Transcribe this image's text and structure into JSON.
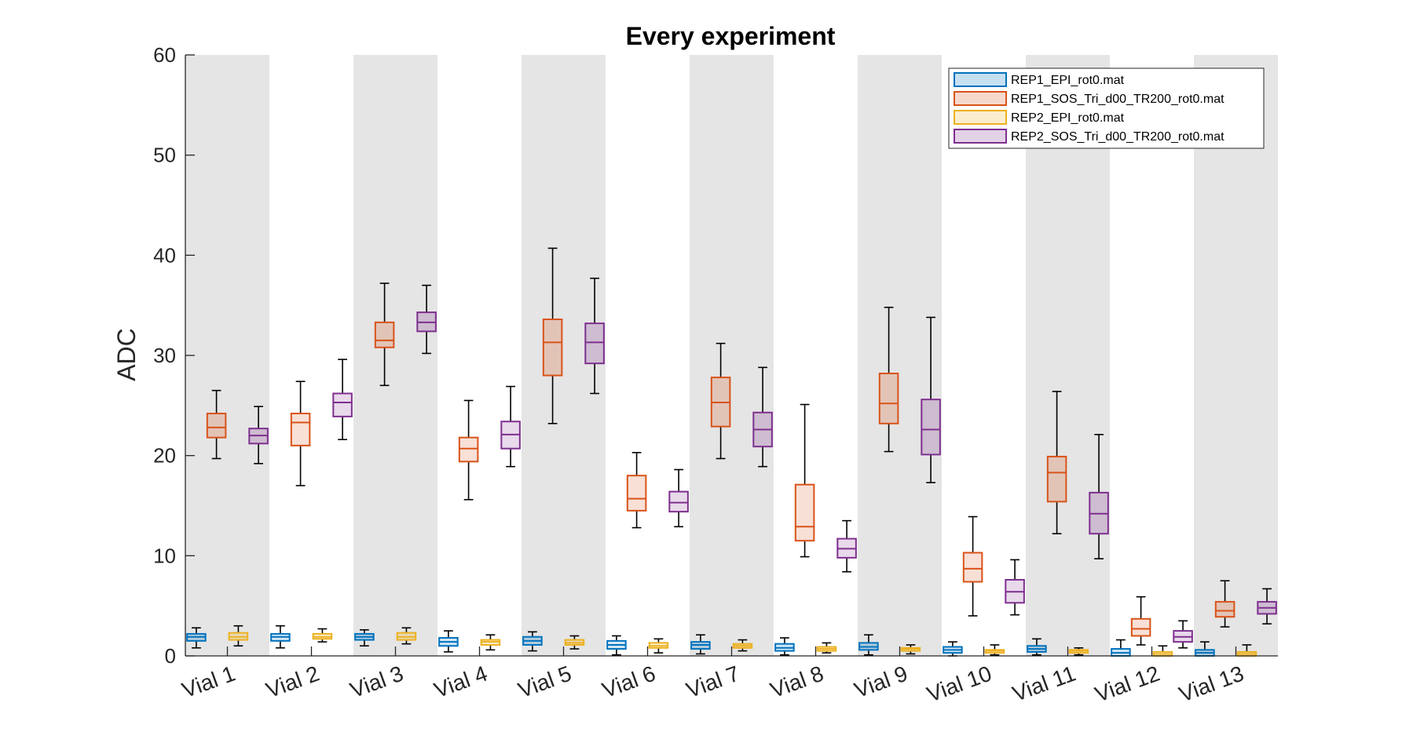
{
  "chart_data": {
    "type": "box",
    "title": "Every experiment",
    "xlabel": "",
    "ylabel": "ADC",
    "ylim": [
      0,
      60
    ],
    "yticks": [
      0,
      10,
      20,
      30,
      40,
      50,
      60
    ],
    "grid": false,
    "legend_position": "top-right",
    "shaded_bands": "alternating categories",
    "categories": [
      "Vial 1",
      "Vial 2",
      "Vial 3",
      "Vial 4",
      "Vial 5",
      "Vial 6",
      "Vial 7",
      "Vial 8",
      "Vial 9",
      "Vial 10",
      "Vial 11",
      "Vial 12",
      "Vial 13"
    ],
    "series": [
      {
        "name": "REP1_EPI_rot0.mat",
        "color": "#0072BD",
        "boxes": [
          {
            "min": 0.8,
            "q1": 1.5,
            "median": 1.9,
            "q3": 2.2,
            "max": 2.8
          },
          {
            "min": 0.8,
            "q1": 1.5,
            "median": 1.9,
            "q3": 2.2,
            "max": 3.0
          },
          {
            "min": 1.0,
            "q1": 1.6,
            "median": 1.9,
            "q3": 2.2,
            "max": 2.6
          },
          {
            "min": 0.4,
            "q1": 1.0,
            "median": 1.4,
            "q3": 1.8,
            "max": 2.5
          },
          {
            "min": 0.5,
            "q1": 1.1,
            "median": 1.5,
            "q3": 1.9,
            "max": 2.4
          },
          {
            "min": 0.1,
            "q1": 0.7,
            "median": 1.1,
            "q3": 1.5,
            "max": 2.0
          },
          {
            "min": 0.2,
            "q1": 0.7,
            "median": 1.1,
            "q3": 1.4,
            "max": 2.1
          },
          {
            "min": 0.1,
            "q1": 0.5,
            "median": 0.8,
            "q3": 1.2,
            "max": 1.8
          },
          {
            "min": 0.1,
            "q1": 0.6,
            "median": 0.9,
            "q3": 1.3,
            "max": 2.1
          },
          {
            "min": 0.0,
            "q1": 0.3,
            "median": 0.6,
            "q3": 0.9,
            "max": 1.4
          },
          {
            "min": 0.1,
            "q1": 0.4,
            "median": 0.7,
            "q3": 1.0,
            "max": 1.7
          },
          {
            "min": 0.0,
            "q1": 0.0,
            "median": 0.3,
            "q3": 0.7,
            "max": 1.6
          },
          {
            "min": 0.0,
            "q1": 0.0,
            "median": 0.3,
            "q3": 0.6,
            "max": 1.4
          }
        ]
      },
      {
        "name": "REP1_SOS_Tri_d00_TR200_rot0.mat",
        "color": "#D95319",
        "boxes": [
          {
            "min": 19.7,
            "q1": 21.8,
            "median": 22.8,
            "q3": 24.2,
            "max": 26.5
          },
          {
            "min": 17.0,
            "q1": 21.0,
            "median": 23.3,
            "q3": 24.2,
            "max": 27.4
          },
          {
            "min": 27.0,
            "q1": 30.8,
            "median": 31.5,
            "q3": 33.3,
            "max": 37.2
          },
          {
            "min": 15.6,
            "q1": 19.4,
            "median": 20.7,
            "q3": 21.8,
            "max": 25.5
          },
          {
            "min": 23.2,
            "q1": 28.0,
            "median": 31.3,
            "q3": 33.6,
            "max": 40.7
          },
          {
            "min": 12.8,
            "q1": 14.5,
            "median": 15.7,
            "q3": 18.0,
            "max": 20.3
          },
          {
            "min": 19.7,
            "q1": 22.9,
            "median": 25.3,
            "q3": 27.8,
            "max": 31.2
          },
          {
            "min": 9.9,
            "q1": 11.5,
            "median": 12.9,
            "q3": 17.1,
            "max": 25.1
          },
          {
            "min": 20.4,
            "q1": 23.2,
            "median": 25.2,
            "q3": 28.2,
            "max": 34.8
          },
          {
            "min": 4.0,
            "q1": 7.4,
            "median": 8.7,
            "q3": 10.3,
            "max": 13.9
          },
          {
            "min": 12.2,
            "q1": 15.4,
            "median": 18.3,
            "q3": 19.9,
            "max": 26.4
          },
          {
            "min": 1.1,
            "q1": 2.0,
            "median": 2.7,
            "q3": 3.7,
            "max": 5.9
          },
          {
            "min": 2.9,
            "q1": 3.9,
            "median": 4.5,
            "q3": 5.4,
            "max": 7.5
          }
        ]
      },
      {
        "name": "REP2_EPI_rot0.mat",
        "color": "#EDB120",
        "boxes": [
          {
            "min": 1.0,
            "q1": 1.6,
            "median": 1.9,
            "q3": 2.3,
            "max": 3.0
          },
          {
            "min": 1.4,
            "q1": 1.7,
            "median": 1.9,
            "q3": 2.2,
            "max": 2.7
          },
          {
            "min": 1.2,
            "q1": 1.6,
            "median": 1.9,
            "q3": 2.3,
            "max": 2.8
          },
          {
            "min": 0.6,
            "q1": 1.1,
            "median": 1.4,
            "q3": 1.6,
            "max": 2.1
          },
          {
            "min": 0.7,
            "q1": 1.1,
            "median": 1.3,
            "q3": 1.6,
            "max": 2.0
          },
          {
            "min": 0.3,
            "q1": 0.8,
            "median": 1.0,
            "q3": 1.3,
            "max": 1.7
          },
          {
            "min": 0.5,
            "q1": 0.8,
            "median": 1.0,
            "q3": 1.2,
            "max": 1.6
          },
          {
            "min": 0.3,
            "q1": 0.5,
            "median": 0.7,
            "q3": 0.9,
            "max": 1.3
          },
          {
            "min": 0.2,
            "q1": 0.5,
            "median": 0.7,
            "q3": 0.8,
            "max": 1.1
          },
          {
            "min": 0.1,
            "q1": 0.3,
            "median": 0.5,
            "q3": 0.6,
            "max": 1.1
          },
          {
            "min": 0.1,
            "q1": 0.3,
            "median": 0.5,
            "q3": 0.6,
            "max": 0.8
          },
          {
            "min": 0.0,
            "q1": 0.0,
            "median": 0.2,
            "q3": 0.4,
            "max": 1.0
          },
          {
            "min": 0.0,
            "q1": 0.0,
            "median": 0.2,
            "q3": 0.4,
            "max": 1.1
          }
        ]
      },
      {
        "name": "REP2_SOS_Tri_d00_TR200_rot0.mat",
        "color": "#7E2F8E",
        "boxes": [
          {
            "min": 19.2,
            "q1": 21.2,
            "median": 22.0,
            "q3": 22.7,
            "max": 24.9
          },
          {
            "min": 21.6,
            "q1": 23.9,
            "median": 25.3,
            "q3": 26.2,
            "max": 29.6
          },
          {
            "min": 30.2,
            "q1": 32.4,
            "median": 33.3,
            "q3": 34.3,
            "max": 37.0
          },
          {
            "min": 18.9,
            "q1": 20.7,
            "median": 22.1,
            "q3": 23.4,
            "max": 26.9
          },
          {
            "min": 26.2,
            "q1": 29.2,
            "median": 31.3,
            "q3": 33.2,
            "max": 37.7
          },
          {
            "min": 12.9,
            "q1": 14.4,
            "median": 15.3,
            "q3": 16.4,
            "max": 18.6
          },
          {
            "min": 18.9,
            "q1": 20.9,
            "median": 22.6,
            "q3": 24.3,
            "max": 28.8
          },
          {
            "min": 8.4,
            "q1": 9.8,
            "median": 10.7,
            "q3": 11.7,
            "max": 13.5
          },
          {
            "min": 17.3,
            "q1": 20.1,
            "median": 22.6,
            "q3": 25.6,
            "max": 33.8
          },
          {
            "min": 4.1,
            "q1": 5.3,
            "median": 6.4,
            "q3": 7.6,
            "max": 9.6
          },
          {
            "min": 9.7,
            "q1": 12.2,
            "median": 14.2,
            "q3": 16.3,
            "max": 22.1
          },
          {
            "min": 0.8,
            "q1": 1.4,
            "median": 1.9,
            "q3": 2.5,
            "max": 3.5
          },
          {
            "min": 3.2,
            "q1": 4.2,
            "median": 4.8,
            "q3": 5.4,
            "max": 6.7
          }
        ]
      }
    ]
  }
}
